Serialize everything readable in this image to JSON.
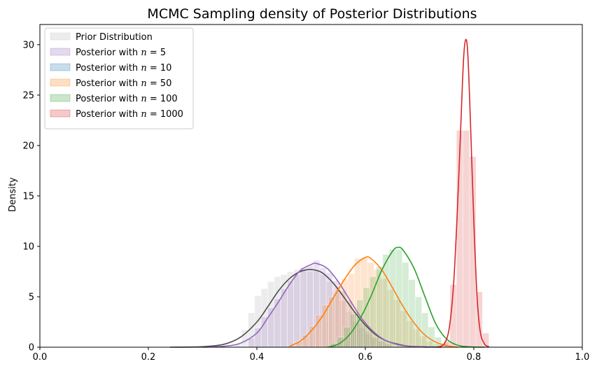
{
  "chart_data": {
    "type": "histogram-kde",
    "title": "MCMC Sampling density of Posterior Distributions",
    "xlabel": "",
    "ylabel": "Density",
    "xlim": [
      0.0,
      1.0
    ],
    "ylim": [
      0,
      32
    ],
    "xticks": [
      0.0,
      0.2,
      0.4,
      0.6,
      0.8,
      1.0
    ],
    "xtick_labels": [
      "0.0",
      "0.2",
      "0.4",
      "0.6",
      "0.8",
      "1.0"
    ],
    "yticks": [
      0,
      5,
      10,
      15,
      20,
      25,
      30
    ],
    "ytick_labels": [
      "0",
      "5",
      "10",
      "15",
      "20",
      "25",
      "30"
    ],
    "grid": false,
    "legend_position": "top-left",
    "series": [
      {
        "name": "Prior Distribution",
        "color": "#4d4d4d",
        "fill": "#bfbfbf",
        "bins": [
          [
            0.36,
            0.372,
            0.3
          ],
          [
            0.372,
            0.384,
            1.7
          ],
          [
            0.384,
            0.396,
            3.4
          ],
          [
            0.396,
            0.408,
            5.1
          ],
          [
            0.408,
            0.42,
            5.8
          ],
          [
            0.42,
            0.432,
            6.5
          ],
          [
            0.432,
            0.444,
            7.0
          ],
          [
            0.444,
            0.456,
            7.2
          ],
          [
            0.456,
            0.468,
            7.5
          ],
          [
            0.468,
            0.48,
            7.7
          ],
          [
            0.48,
            0.492,
            7.7
          ],
          [
            0.492,
            0.504,
            7.5
          ],
          [
            0.504,
            0.516,
            7.6
          ],
          [
            0.516,
            0.528,
            7.2
          ],
          [
            0.528,
            0.54,
            6.5
          ],
          [
            0.54,
            0.552,
            5.5
          ],
          [
            0.552,
            0.564,
            4.6
          ],
          [
            0.564,
            0.576,
            3.5
          ],
          [
            0.576,
            0.588,
            2.6
          ],
          [
            0.588,
            0.6,
            1.9
          ],
          [
            0.6,
            0.612,
            1.3
          ],
          [
            0.612,
            0.624,
            0.9
          ],
          [
            0.624,
            0.636,
            0.6
          ],
          [
            0.636,
            0.648,
            0.4
          ]
        ],
        "kde": [
          [
            0.24,
            0.0
          ],
          [
            0.3,
            0.05
          ],
          [
            0.34,
            0.3
          ],
          [
            0.37,
            1.0
          ],
          [
            0.4,
            2.5
          ],
          [
            0.42,
            4.0
          ],
          [
            0.44,
            5.6
          ],
          [
            0.46,
            6.8
          ],
          [
            0.48,
            7.5
          ],
          [
            0.5,
            7.7
          ],
          [
            0.52,
            7.4
          ],
          [
            0.54,
            6.4
          ],
          [
            0.56,
            5.0
          ],
          [
            0.58,
            3.5
          ],
          [
            0.6,
            2.2
          ],
          [
            0.62,
            1.2
          ],
          [
            0.64,
            0.6
          ],
          [
            0.66,
            0.3
          ],
          [
            0.68,
            0.1
          ],
          [
            0.72,
            0.02
          ],
          [
            0.74,
            0.0
          ]
        ]
      },
      {
        "name": "Posterior with $n=5$",
        "label_prefix": "Posterior with ",
        "label_var": "n",
        "label_suffix": " = 5",
        "color": "#9467bd",
        "fill": "#9467bd",
        "bins": [
          [
            0.384,
            0.396,
            0.9
          ],
          [
            0.396,
            0.408,
            1.9
          ],
          [
            0.408,
            0.42,
            3.0
          ],
          [
            0.42,
            0.432,
            3.9
          ],
          [
            0.432,
            0.444,
            4.8
          ],
          [
            0.444,
            0.456,
            5.8
          ],
          [
            0.456,
            0.468,
            6.6
          ],
          [
            0.468,
            0.48,
            7.2
          ],
          [
            0.48,
            0.492,
            7.9
          ],
          [
            0.492,
            0.504,
            8.1
          ],
          [
            0.504,
            0.516,
            8.6
          ],
          [
            0.516,
            0.528,
            7.9
          ],
          [
            0.528,
            0.54,
            7.4
          ],
          [
            0.54,
            0.552,
            6.6
          ],
          [
            0.552,
            0.564,
            5.6
          ],
          [
            0.564,
            0.576,
            4.6
          ],
          [
            0.576,
            0.588,
            3.5
          ],
          [
            0.588,
            0.6,
            2.4
          ],
          [
            0.6,
            0.612,
            1.6
          ],
          [
            0.612,
            0.624,
            1.0
          ],
          [
            0.624,
            0.636,
            0.6
          ],
          [
            0.636,
            0.648,
            0.3
          ]
        ],
        "kde": [
          [
            0.3,
            0.0
          ],
          [
            0.34,
            0.1
          ],
          [
            0.37,
            0.4
          ],
          [
            0.4,
            1.4
          ],
          [
            0.42,
            2.9
          ],
          [
            0.44,
            4.5
          ],
          [
            0.46,
            6.2
          ],
          [
            0.48,
            7.6
          ],
          [
            0.5,
            8.2
          ],
          [
            0.51,
            8.3
          ],
          [
            0.53,
            7.8
          ],
          [
            0.55,
            6.5
          ],
          [
            0.57,
            4.8
          ],
          [
            0.59,
            3.1
          ],
          [
            0.61,
            1.8
          ],
          [
            0.63,
            0.9
          ],
          [
            0.65,
            0.4
          ],
          [
            0.67,
            0.15
          ],
          [
            0.7,
            0.03
          ],
          [
            0.72,
            0.0
          ]
        ]
      },
      {
        "name": "Posterior with $n=10$",
        "label_prefix": "Posterior with ",
        "label_var": "n",
        "label_suffix": " = 10",
        "color": "#1f77b4",
        "fill": "#1f77b4",
        "bins": [],
        "kde": []
      },
      {
        "name": "Posterior with $n=50$",
        "label_prefix": "Posterior with ",
        "label_var": "n",
        "label_suffix": " = 50",
        "color": "#ff7f0e",
        "fill": "#ff7f0e",
        "bins": [
          [
            0.46,
            0.472,
            0.2
          ],
          [
            0.472,
            0.484,
            0.6
          ],
          [
            0.484,
            0.496,
            1.2
          ],
          [
            0.496,
            0.508,
            2.1
          ],
          [
            0.508,
            0.52,
            3.2
          ],
          [
            0.52,
            0.532,
            4.2
          ],
          [
            0.532,
            0.544,
            5.0
          ],
          [
            0.544,
            0.556,
            6.0
          ],
          [
            0.556,
            0.568,
            6.8
          ],
          [
            0.568,
            0.58,
            7.3
          ],
          [
            0.58,
            0.592,
            8.8
          ],
          [
            0.592,
            0.604,
            8.9
          ],
          [
            0.604,
            0.616,
            8.4
          ],
          [
            0.616,
            0.628,
            7.7
          ],
          [
            0.628,
            0.64,
            6.8
          ],
          [
            0.64,
            0.652,
            5.7
          ],
          [
            0.652,
            0.664,
            4.7
          ],
          [
            0.664,
            0.676,
            3.6
          ],
          [
            0.676,
            0.688,
            2.6
          ],
          [
            0.688,
            0.7,
            1.8
          ],
          [
            0.7,
            0.712,
            1.1
          ],
          [
            0.712,
            0.724,
            0.6
          ],
          [
            0.724,
            0.736,
            0.3
          ]
        ],
        "kde": [
          [
            0.46,
            0.1
          ],
          [
            0.48,
            0.6
          ],
          [
            0.5,
            1.6
          ],
          [
            0.52,
            3.0
          ],
          [
            0.54,
            4.8
          ],
          [
            0.56,
            6.6
          ],
          [
            0.58,
            8.1
          ],
          [
            0.6,
            8.9
          ],
          [
            0.61,
            8.8
          ],
          [
            0.63,
            7.7
          ],
          [
            0.65,
            5.9
          ],
          [
            0.67,
            4.0
          ],
          [
            0.69,
            2.4
          ],
          [
            0.71,
            1.2
          ],
          [
            0.73,
            0.5
          ],
          [
            0.75,
            0.15
          ],
          [
            0.77,
            0.0
          ]
        ]
      },
      {
        "name": "Posterior with $n=100$",
        "label_prefix": "Posterior with ",
        "label_var": "n",
        "label_suffix": " = 100",
        "color": "#2ca02c",
        "fill": "#2ca02c",
        "bins": [
          [
            0.536,
            0.548,
            0.4
          ],
          [
            0.548,
            0.56,
            1.0
          ],
          [
            0.56,
            0.572,
            2.0
          ],
          [
            0.572,
            0.584,
            3.3
          ],
          [
            0.584,
            0.596,
            4.7
          ],
          [
            0.596,
            0.608,
            5.9
          ],
          [
            0.608,
            0.62,
            7.0
          ],
          [
            0.62,
            0.632,
            8.0
          ],
          [
            0.632,
            0.644,
            9.2
          ],
          [
            0.644,
            0.656,
            9.7
          ],
          [
            0.656,
            0.668,
            9.7
          ],
          [
            0.668,
            0.68,
            8.4
          ],
          [
            0.68,
            0.692,
            6.7
          ],
          [
            0.692,
            0.704,
            5.0
          ],
          [
            0.704,
            0.716,
            3.4
          ],
          [
            0.716,
            0.728,
            2.0
          ],
          [
            0.728,
            0.74,
            1.0
          ],
          [
            0.74,
            0.752,
            0.4
          ]
        ],
        "kde": [
          [
            0.53,
            0.0
          ],
          [
            0.55,
            0.3
          ],
          [
            0.57,
            1.2
          ],
          [
            0.59,
            2.8
          ],
          [
            0.61,
            5.0
          ],
          [
            0.63,
            7.6
          ],
          [
            0.65,
            9.5
          ],
          [
            0.66,
            9.9
          ],
          [
            0.67,
            9.6
          ],
          [
            0.69,
            7.8
          ],
          [
            0.71,
            5.0
          ],
          [
            0.73,
            2.3
          ],
          [
            0.75,
            0.8
          ],
          [
            0.77,
            0.2
          ],
          [
            0.79,
            0.05
          ],
          [
            0.82,
            0.0
          ]
        ]
      },
      {
        "name": "Posterior with $n=1000$",
        "label_prefix": "Posterior with ",
        "label_var": "n",
        "label_suffix": " = 1000",
        "color": "#d62728",
        "fill": "#d62728",
        "bins": [
          [
            0.744,
            0.756,
            0.6
          ],
          [
            0.756,
            0.768,
            6.2
          ],
          [
            0.768,
            0.78,
            21.5
          ],
          [
            0.78,
            0.792,
            21.5
          ],
          [
            0.792,
            0.804,
            18.9
          ],
          [
            0.804,
            0.816,
            5.5
          ],
          [
            0.816,
            0.828,
            1.4
          ]
        ],
        "kde": [
          [
            0.73,
            0.0
          ],
          [
            0.745,
            0.3
          ],
          [
            0.755,
            2.0
          ],
          [
            0.763,
            6.5
          ],
          [
            0.77,
            14.0
          ],
          [
            0.776,
            22.0
          ],
          [
            0.781,
            28.5
          ],
          [
            0.785,
            30.5
          ],
          [
            0.789,
            29.0
          ],
          [
            0.794,
            22.0
          ],
          [
            0.8,
            12.5
          ],
          [
            0.806,
            5.0
          ],
          [
            0.812,
            1.5
          ],
          [
            0.82,
            0.3
          ],
          [
            0.828,
            0.05
          ]
        ]
      }
    ]
  }
}
